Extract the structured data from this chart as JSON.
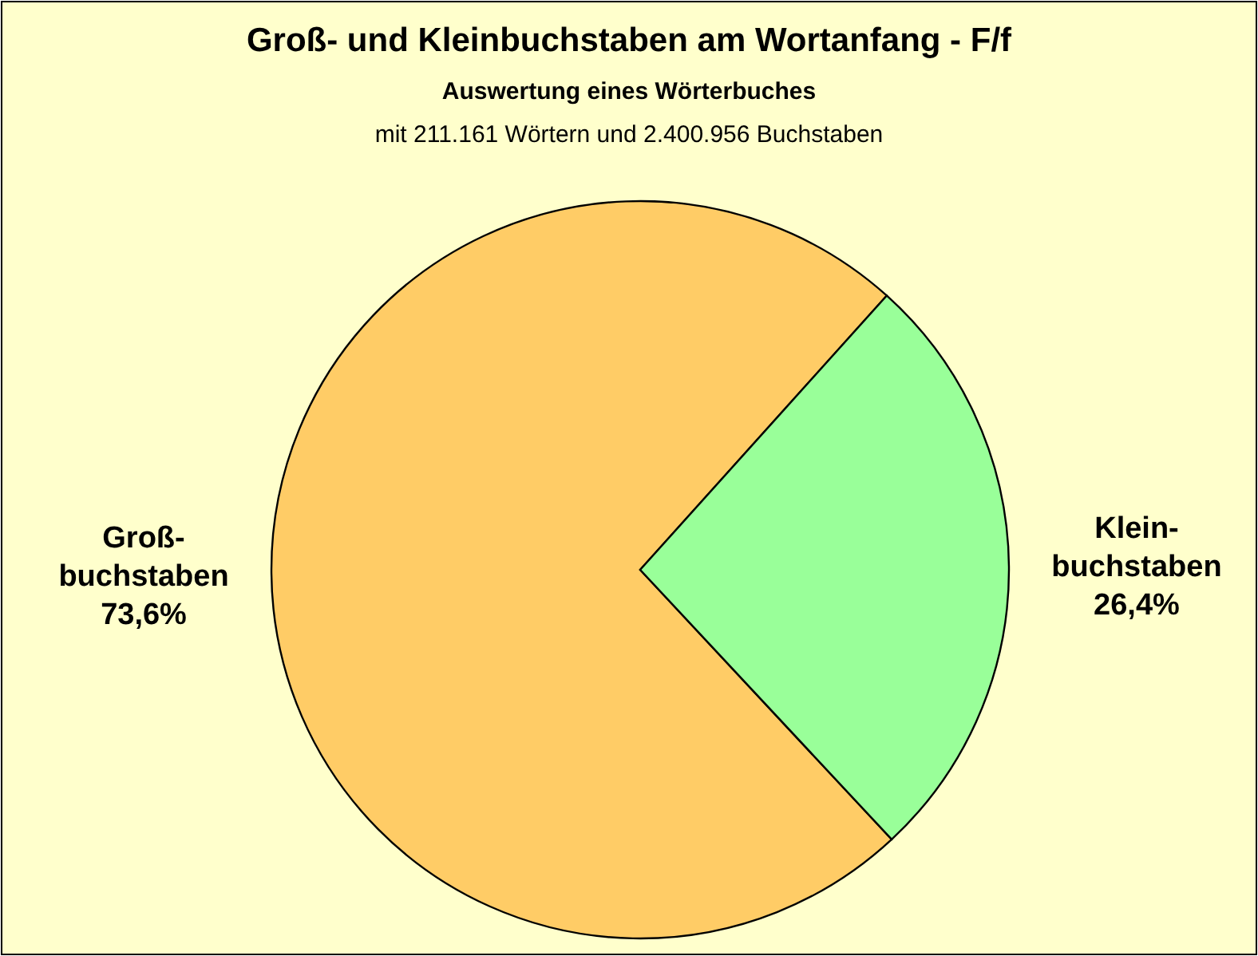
{
  "chart_data": {
    "type": "pie",
    "title": "Groß- und  Kleinbuchstaben am Wortanfang - F/f",
    "subtitle": "Auswertung eines Wörterbuches",
    "annotations": [
      "mit 211.161 Wörtern und 2.400.956 Buchstaben"
    ],
    "categories": [
      "Groß-\nbuchstaben",
      "Klein-\nbuchstaben"
    ],
    "values": [
      73.6,
      26.4
    ],
    "colors": [
      "#ffcc66",
      "#99ff99"
    ],
    "value_labels": [
      "73,6%",
      "26,4%"
    ]
  }
}
